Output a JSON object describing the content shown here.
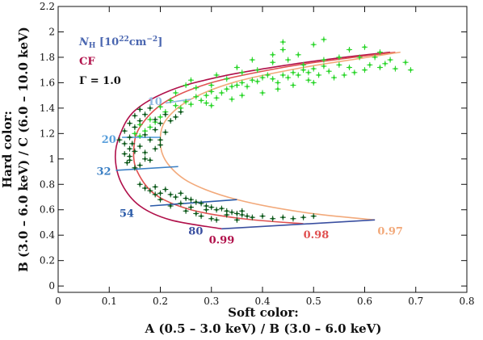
{
  "chart_data": {
    "type": "scatter",
    "xlabel_line1": "Soft color:",
    "xlabel_line2": "A (0.5 – 3.0 keV) / B (3.0 – 6.0 keV)",
    "ylabel_line1": "Hard color:",
    "ylabel_line2": "B (3.0 – 6.0 keV) / C (6.0 – 10.0 keV)",
    "xlim": [
      0,
      0.8
    ],
    "ylim": [
      -0.05,
      2.2
    ],
    "xticks": [
      0,
      0.1,
      0.2,
      0.3,
      0.4,
      0.5,
      0.6,
      0.7,
      0.8
    ],
    "xtick_labels": [
      "0",
      "0.1",
      "0.2",
      "0.3",
      "0.4",
      "0.5",
      "0.6",
      "0.7",
      "0.8"
    ],
    "yticks": [
      0,
      0.2,
      0.4,
      0.6,
      0.8,
      1,
      1.2,
      1.4,
      1.6,
      1.8,
      2,
      2.2
    ],
    "ytick_labels": [
      "0",
      "0.2",
      "0.4",
      "0.6",
      "0.8",
      "1",
      "1.2",
      "1.4",
      "1.6",
      "1.8",
      "2",
      "2.2"
    ],
    "legend": [
      {
        "text": "N",
        "sub": "H",
        "suffix": " [10",
        "sup": "22",
        "tail": "cm",
        "sup2": "−2",
        "end": "]",
        "color": "#4a66b0"
      },
      {
        "text": "CF",
        "color": "#b0104a"
      },
      {
        "text": "Γ = 1.0",
        "color": "#111111"
      }
    ],
    "cf_curves": [
      {
        "label": "0.99",
        "color": "#b0104a",
        "points": [
          [
            0.32,
            0.45
          ],
          [
            0.22,
            0.52
          ],
          [
            0.16,
            0.63
          ],
          [
            0.125,
            0.8
          ],
          [
            0.112,
            1.0
          ],
          [
            0.12,
            1.18
          ],
          [
            0.15,
            1.38
          ],
          [
            0.22,
            1.54
          ],
          [
            0.32,
            1.65
          ],
          [
            0.45,
            1.74
          ],
          [
            0.56,
            1.8
          ],
          [
            0.65,
            1.84
          ]
        ],
        "label_xy": [
          0.295,
          0.36
        ]
      },
      {
        "label": "0.98",
        "color": "#e05050",
        "points": [
          [
            0.48,
            0.49
          ],
          [
            0.36,
            0.53
          ],
          [
            0.26,
            0.6
          ],
          [
            0.19,
            0.72
          ],
          [
            0.155,
            0.9
          ],
          [
            0.148,
            1.07
          ],
          [
            0.16,
            1.25
          ],
          [
            0.21,
            1.45
          ],
          [
            0.3,
            1.6
          ],
          [
            0.44,
            1.72
          ],
          [
            0.56,
            1.79
          ],
          [
            0.66,
            1.84
          ]
        ],
        "label_xy": [
          0.48,
          0.4
        ]
      },
      {
        "label": "0.97",
        "color": "#f2a97a",
        "points": [
          [
            0.62,
            0.52
          ],
          [
            0.48,
            0.58
          ],
          [
            0.35,
            0.68
          ],
          [
            0.26,
            0.81
          ],
          [
            0.215,
            0.96
          ],
          [
            0.2,
            1.12
          ],
          [
            0.21,
            1.3
          ],
          [
            0.26,
            1.47
          ],
          [
            0.35,
            1.61
          ],
          [
            0.48,
            1.72
          ],
          [
            0.59,
            1.79
          ],
          [
            0.67,
            1.84
          ]
        ],
        "label_xy": [
          0.625,
          0.43
        ]
      }
    ],
    "nh_lines": [
      {
        "label": "10",
        "color": "#8fb8e0",
        "points": [
          [
            0.21,
            1.44
          ],
          [
            0.26,
            1.47
          ]
        ],
        "label_xy": [
          0.175,
          1.45
        ]
      },
      {
        "label": "20",
        "color": "#5aa0dc",
        "points": [
          [
            0.125,
            1.17
          ],
          [
            0.2,
            1.17
          ]
        ],
        "label_xy": [
          0.085,
          1.15
        ]
      },
      {
        "label": "32",
        "color": "#3a7fc4",
        "points": [
          [
            0.113,
            0.91
          ],
          [
            0.235,
            0.94
          ]
        ],
        "label_xy": [
          0.075,
          0.9
        ]
      },
      {
        "label": "54",
        "color": "#2a5aa8",
        "points": [
          [
            0.18,
            0.63
          ],
          [
            0.35,
            0.68
          ]
        ],
        "label_xy": [
          0.12,
          0.57
        ]
      },
      {
        "label": "80",
        "color": "#3a4fa0",
        "points": [
          [
            0.32,
            0.45
          ],
          [
            0.62,
            0.52
          ]
        ],
        "label_xy": [
          0.255,
          0.43
        ]
      }
    ],
    "series": [
      {
        "color": "#2ed62e",
        "points": [
          [
            0.21,
            1.37
          ],
          [
            0.23,
            1.42
          ],
          [
            0.25,
            1.45
          ],
          [
            0.27,
            1.49
          ],
          [
            0.29,
            1.5
          ],
          [
            0.3,
            1.53
          ],
          [
            0.32,
            1.52
          ],
          [
            0.34,
            1.57
          ],
          [
            0.36,
            1.6
          ],
          [
            0.38,
            1.62
          ],
          [
            0.4,
            1.64
          ],
          [
            0.42,
            1.63
          ],
          [
            0.44,
            1.66
          ],
          [
            0.46,
            1.68
          ],
          [
            0.48,
            1.7
          ],
          [
            0.5,
            1.71
          ],
          [
            0.52,
            1.73
          ],
          [
            0.55,
            1.74
          ],
          [
            0.57,
            1.72
          ],
          [
            0.6,
            1.7
          ],
          [
            0.63,
            1.72
          ],
          [
            0.66,
            1.71
          ],
          [
            0.69,
            1.7
          ],
          [
            0.24,
            1.4
          ],
          [
            0.26,
            1.43
          ],
          [
            0.28,
            1.46
          ],
          [
            0.31,
            1.48
          ],
          [
            0.33,
            1.55
          ],
          [
            0.35,
            1.58
          ],
          [
            0.37,
            1.57
          ],
          [
            0.39,
            1.61
          ],
          [
            0.41,
            1.66
          ],
          [
            0.43,
            1.6
          ],
          [
            0.45,
            1.64
          ],
          [
            0.47,
            1.66
          ],
          [
            0.49,
            1.68
          ],
          [
            0.51,
            1.66
          ],
          [
            0.53,
            1.69
          ],
          [
            0.56,
            1.66
          ],
          [
            0.58,
            1.68
          ],
          [
            0.61,
            1.74
          ],
          [
            0.64,
            1.75
          ],
          [
            0.22,
            1.46
          ],
          [
            0.2,
            1.33
          ],
          [
            0.19,
            1.29
          ],
          [
            0.18,
            1.25
          ],
          [
            0.17,
            1.22
          ],
          [
            0.16,
            1.18
          ],
          [
            0.15,
            1.2
          ],
          [
            0.16,
            1.27
          ],
          [
            0.18,
            1.31
          ],
          [
            0.2,
            1.41
          ],
          [
            0.27,
            1.56
          ],
          [
            0.3,
            1.58
          ],
          [
            0.33,
            1.63
          ],
          [
            0.36,
            1.68
          ],
          [
            0.39,
            1.7
          ],
          [
            0.42,
            1.76
          ],
          [
            0.45,
            1.78
          ],
          [
            0.48,
            1.74
          ],
          [
            0.52,
            1.78
          ],
          [
            0.55,
            1.8
          ],
          [
            0.59,
            1.8
          ],
          [
            0.62,
            1.8
          ],
          [
            0.65,
            1.78
          ],
          [
            0.68,
            1.76
          ],
          [
            0.29,
            1.44
          ],
          [
            0.34,
            1.47
          ],
          [
            0.4,
            1.52
          ],
          [
            0.46,
            1.58
          ],
          [
            0.5,
            1.6
          ],
          [
            0.54,
            1.64
          ],
          [
            0.31,
            1.66
          ],
          [
            0.35,
            1.72
          ],
          [
            0.38,
            1.78
          ],
          [
            0.42,
            1.82
          ],
          [
            0.44,
            1.86
          ],
          [
            0.47,
            1.82
          ],
          [
            0.5,
            1.9
          ],
          [
            0.52,
            1.94
          ],
          [
            0.44,
            1.92
          ],
          [
            0.26,
            1.62
          ],
          [
            0.23,
            1.52
          ],
          [
            0.25,
            1.58
          ],
          [
            0.57,
            1.86
          ],
          [
            0.6,
            1.88
          ],
          [
            0.63,
            1.84
          ],
          [
            0.3,
            1.42
          ],
          [
            0.36,
            1.5
          ],
          [
            0.43,
            1.55
          ],
          [
            0.49,
            1.62
          ]
        ]
      },
      {
        "color": "#0e5a1c",
        "points": [
          [
            0.13,
            1.22
          ],
          [
            0.14,
            1.17
          ],
          [
            0.145,
            1.12
          ],
          [
            0.15,
            1.06
          ],
          [
            0.14,
            1.02
          ],
          [
            0.135,
            0.97
          ],
          [
            0.14,
            1.28
          ],
          [
            0.15,
            1.34
          ],
          [
            0.16,
            1.39
          ],
          [
            0.17,
            1.35
          ],
          [
            0.18,
            1.4
          ],
          [
            0.16,
            1.3
          ],
          [
            0.15,
            1.25
          ],
          [
            0.17,
            1.19
          ],
          [
            0.19,
            1.23
          ],
          [
            0.2,
            1.28
          ],
          [
            0.18,
            1.15
          ],
          [
            0.16,
            1.1
          ],
          [
            0.17,
            1.05
          ],
          [
            0.19,
            1.08
          ],
          [
            0.2,
            1.15
          ],
          [
            0.21,
            1.21
          ],
          [
            0.22,
            1.3
          ],
          [
            0.14,
            1.08
          ],
          [
            0.13,
            1.12
          ],
          [
            0.12,
            1.15
          ],
          [
            0.15,
            0.93
          ],
          [
            0.16,
            0.95
          ],
          [
            0.18,
            0.99
          ],
          [
            0.16,
            0.8
          ],
          [
            0.17,
            0.77
          ],
          [
            0.18,
            0.75
          ],
          [
            0.19,
            0.78
          ],
          [
            0.2,
            0.73
          ],
          [
            0.21,
            0.76
          ],
          [
            0.22,
            0.72
          ],
          [
            0.23,
            0.7
          ],
          [
            0.24,
            0.73
          ],
          [
            0.25,
            0.69
          ],
          [
            0.26,
            0.68
          ],
          [
            0.27,
            0.66
          ],
          [
            0.28,
            0.65
          ],
          [
            0.29,
            0.63
          ],
          [
            0.3,
            0.62
          ],
          [
            0.31,
            0.6
          ],
          [
            0.32,
            0.61
          ],
          [
            0.33,
            0.59
          ],
          [
            0.34,
            0.58
          ],
          [
            0.35,
            0.57
          ],
          [
            0.36,
            0.56
          ],
          [
            0.37,
            0.55
          ],
          [
            0.38,
            0.54
          ],
          [
            0.4,
            0.55
          ],
          [
            0.42,
            0.53
          ],
          [
            0.44,
            0.54
          ],
          [
            0.46,
            0.53
          ],
          [
            0.48,
            0.54
          ],
          [
            0.5,
            0.55
          ],
          [
            0.27,
            0.57
          ],
          [
            0.3,
            0.53
          ],
          [
            0.25,
            0.59
          ],
          [
            0.22,
            0.63
          ],
          [
            0.2,
            0.68
          ],
          [
            0.19,
            0.72
          ],
          [
            0.24,
            0.65
          ],
          [
            0.29,
            0.6
          ],
          [
            0.33,
            0.56
          ],
          [
            0.36,
            0.59
          ],
          [
            0.31,
            0.52
          ],
          [
            0.28,
            0.55
          ],
          [
            0.35,
            0.52
          ],
          [
            0.26,
            0.62
          ],
          [
            0.17,
            1.0
          ],
          [
            0.19,
            1.31
          ],
          [
            0.21,
            1.35
          ],
          [
            0.23,
            1.33
          ],
          [
            0.24,
            1.37
          ],
          [
            0.2,
            1.11
          ],
          [
            0.13,
            1.04
          ],
          [
            0.14,
            0.99
          ]
        ]
      }
    ]
  }
}
